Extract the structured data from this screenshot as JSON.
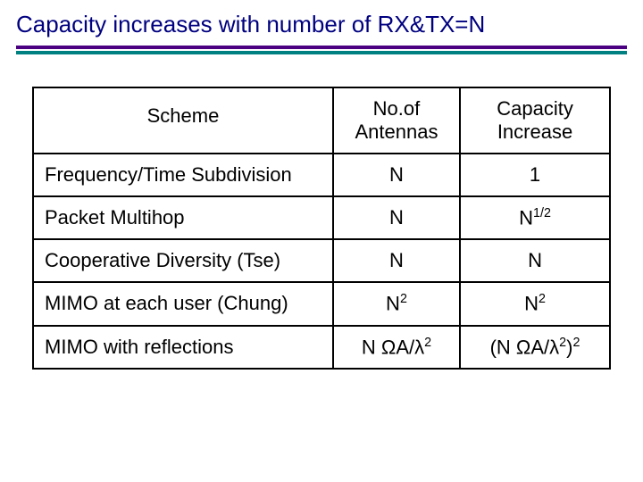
{
  "title": "Capacity increases with number of RX&TX=N",
  "colors": {
    "title_color": "#000080",
    "rule_top": "#4b0082",
    "rule_bottom": "#008080",
    "text": "#000000",
    "border": "#000000",
    "background": "#ffffff"
  },
  "typography": {
    "title_fontsize": 26,
    "cell_fontsize": 22,
    "font_family": "Arial"
  },
  "table": {
    "type": "table",
    "column_widths_pct": [
      52,
      22,
      26
    ],
    "columns": [
      "Scheme",
      "No. of Antennas",
      "Capacity Increase"
    ],
    "header": {
      "scheme": "Scheme",
      "antennas_line1": "No.of",
      "antennas_line2": "Antennas",
      "capacity_line1": "Capacity",
      "capacity_line2": "Increase"
    },
    "rows": [
      {
        "scheme": "Frequency/Time Subdivision",
        "antennas_html": "N",
        "capacity_html": "1"
      },
      {
        "scheme": "Packet Multihop",
        "antennas_html": "N",
        "capacity_html": "N<sup>1/2</sup>"
      },
      {
        "scheme": "Cooperative Diversity (Tse)",
        "antennas_html": "N",
        "capacity_html": "N"
      },
      {
        "scheme": "MIMO at each user (Chung)",
        "antennas_html": "N<sup>2</sup>",
        "capacity_html": "N<sup>2</sup>"
      },
      {
        "scheme": "MIMO with reflections",
        "antennas_html": "N ΩA/λ<sup>2</sup>",
        "capacity_html": "(N ΩA/λ<sup>2</sup>)<sup>2</sup>"
      }
    ]
  }
}
